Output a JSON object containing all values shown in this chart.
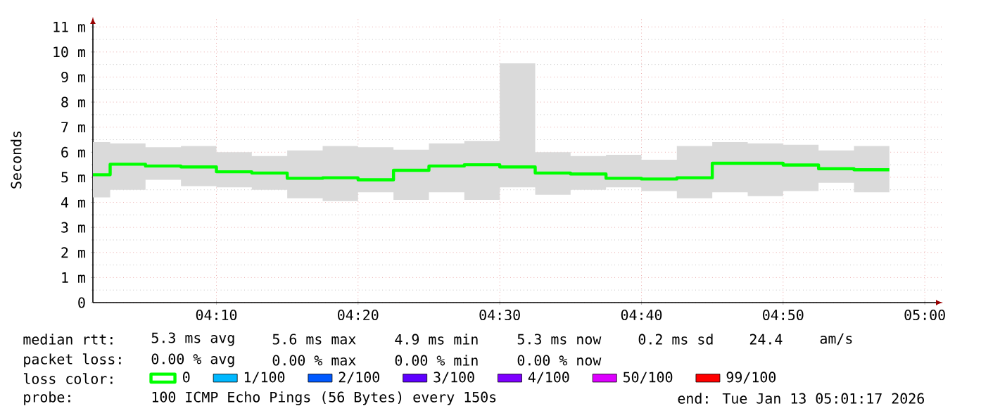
{
  "chart_data": {
    "type": "step",
    "ylabel": "Seconds",
    "legend_title": "loss color:",
    "legend": "bottom",
    "grid": true,
    "x": [
      4.0214,
      4.0417,
      4.0833,
      4.125,
      4.1667,
      4.2083,
      4.25,
      4.2917,
      4.3333,
      4.375,
      4.4167,
      4.4583,
      4.5,
      4.5417,
      4.5833,
      4.625,
      4.6667,
      4.7083,
      4.75,
      4.7917,
      4.8333,
      4.875,
      4.9167,
      4.9583
    ],
    "xlim": [
      4.0214,
      5.0214
    ],
    "xticks": [
      {
        "value": 4.1667,
        "label": "04:10"
      },
      {
        "value": 4.3333,
        "label": "04:20"
      },
      {
        "value": 4.5,
        "label": "04:30"
      },
      {
        "value": 4.6667,
        "label": "04:40"
      },
      {
        "value": 4.8333,
        "label": "04:50"
      },
      {
        "value": 5.0,
        "label": "05:00"
      }
    ],
    "ylim": [
      0,
      11.4
    ],
    "yticks": [
      0,
      {
        "value": 1,
        "label": "1 m"
      },
      {
        "value": 2,
        "label": "2 m"
      },
      {
        "value": 3,
        "label": "3 m"
      },
      {
        "value": 4,
        "label": "4 m"
      },
      {
        "value": 5,
        "label": "5 m"
      },
      {
        "value": 6,
        "label": "6 m"
      },
      {
        "value": 7,
        "label": "7 m"
      },
      {
        "value": 8,
        "label": "8 m"
      },
      {
        "value": 9,
        "label": "9 m"
      },
      {
        "value": 10,
        "label": "10 m"
      },
      {
        "value": 11,
        "label": "11 m"
      }
    ],
    "series": [
      {
        "name": "0",
        "color": "#00ff00",
        "values": [
          5.1,
          5.52,
          5.45,
          5.41,
          5.22,
          5.17,
          4.96,
          4.98,
          4.9,
          5.28,
          5.45,
          5.5,
          5.41,
          5.17,
          5.13,
          4.96,
          4.93,
          4.98,
          5.56,
          5.56,
          5.49,
          5.34,
          5.3,
          5.3
        ],
        "upper": [
          6.4,
          6.35,
          6.2,
          6.25,
          6.0,
          5.85,
          6.07,
          6.25,
          6.2,
          6.1,
          6.35,
          6.45,
          9.55,
          6.0,
          5.85,
          5.9,
          5.7,
          6.25,
          6.4,
          6.35,
          6.3,
          6.07,
          6.25,
          6.25
        ],
        "lower": [
          4.2,
          4.5,
          4.9,
          4.65,
          4.6,
          4.5,
          4.16,
          4.05,
          4.4,
          4.1,
          4.4,
          4.1,
          4.6,
          4.3,
          4.5,
          4.6,
          4.45,
          4.16,
          4.4,
          4.25,
          4.45,
          4.78,
          4.4,
          4.4
        ]
      },
      {
        "name": "1/100",
        "color": "#00b8ff",
        "values": [
          null,
          null,
          null,
          null,
          null,
          null,
          null,
          null,
          null,
          null,
          null,
          null,
          null,
          null,
          null,
          null,
          null,
          null,
          null,
          null,
          null,
          null,
          null,
          null
        ]
      },
      {
        "name": "2/100",
        "color": "#0059ff",
        "values": [
          null,
          null,
          null,
          null,
          null,
          null,
          null,
          null,
          null,
          null,
          null,
          null,
          null,
          null,
          null,
          null,
          null,
          null,
          null,
          null,
          null,
          null,
          null,
          null
        ]
      },
      {
        "name": "3/100",
        "color": "#5e00ff",
        "values": [
          null,
          null,
          null,
          null,
          null,
          null,
          null,
          null,
          null,
          null,
          null,
          null,
          null,
          null,
          null,
          null,
          null,
          null,
          null,
          null,
          null,
          null,
          null,
          null
        ]
      },
      {
        "name": "4/100",
        "color": "#7e00ff",
        "values": [
          null,
          null,
          null,
          null,
          null,
          null,
          null,
          null,
          null,
          null,
          null,
          null,
          null,
          null,
          null,
          null,
          null,
          null,
          null,
          null,
          null,
          null,
          null,
          null
        ]
      },
      {
        "name": "50/100",
        "color": "#dd00ff",
        "values": [
          null,
          null,
          null,
          null,
          null,
          null,
          null,
          null,
          null,
          null,
          null,
          null,
          null,
          null,
          null,
          null,
          null,
          null,
          null,
          null,
          null,
          null,
          null,
          null
        ]
      },
      {
        "name": "99/100",
        "color": "#ff0000",
        "values": [
          null,
          null,
          null,
          null,
          null,
          null,
          null,
          null,
          null,
          null,
          null,
          null,
          null,
          null,
          null,
          null,
          null,
          null,
          null,
          null,
          null,
          null,
          null,
          null
        ]
      }
    ],
    "annotations": [
      "median rtt:",
      "5.3 ms avg",
      "5.6 ms max",
      "4.9 ms min",
      "5.3 ms now",
      "0.2 ms sd",
      "24.4",
      "am/s",
      "packet loss:",
      "0.00 % avg",
      "0.00 % max",
      "0.00 % min",
      "0.00 % now",
      "probe:",
      "100 ICMP Echo Pings (56 Bytes) every 150s",
      "end: Tue Jan 13 05:01:17 2026"
    ]
  }
}
